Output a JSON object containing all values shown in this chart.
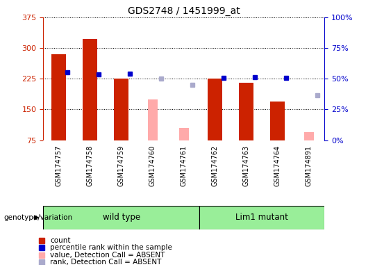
{
  "title": "GDS2748 / 1451999_at",
  "samples": [
    "GSM174757",
    "GSM174758",
    "GSM174759",
    "GSM174760",
    "GSM174761",
    "GSM174762",
    "GSM174763",
    "GSM174764",
    "GSM174891"
  ],
  "count_values": [
    285,
    322,
    225,
    null,
    null,
    225,
    215,
    170,
    null
  ],
  "percentile_values": [
    240,
    235,
    237,
    null,
    null,
    228,
    229,
    228,
    null
  ],
  "absent_count": [
    null,
    null,
    null,
    175,
    105,
    null,
    null,
    null,
    95
  ],
  "absent_rank": [
    null,
    null,
    null,
    226,
    210,
    null,
    null,
    null,
    185
  ],
  "ylim": [
    75,
    375
  ],
  "yticks": [
    75,
    150,
    225,
    300,
    375
  ],
  "y2ticks": [
    0,
    25,
    50,
    75,
    100
  ],
  "y2lim": [
    0,
    100
  ],
  "n_samples": 9,
  "count_color": "#cc2200",
  "percentile_color": "#0000cc",
  "absent_count_color": "#ffaaaa",
  "absent_rank_color": "#aaaacc",
  "plot_bg": "#ffffff",
  "xticklabel_bg": "#cccccc",
  "group_band_color": "#99ee99",
  "ylabel_left_color": "#cc2200",
  "ylabel_right_color": "#0000cc",
  "genotype_label": "genotype/variation",
  "wt_label": "wild type",
  "lim1_label": "Lim1 mutant",
  "legend_items": [
    {
      "color": "#cc2200",
      "label": "count"
    },
    {
      "color": "#0000cc",
      "label": "percentile rank within the sample"
    },
    {
      "color": "#ffaaaa",
      "label": "value, Detection Call = ABSENT"
    },
    {
      "color": "#aaaacc",
      "label": "rank, Detection Call = ABSENT"
    }
  ]
}
